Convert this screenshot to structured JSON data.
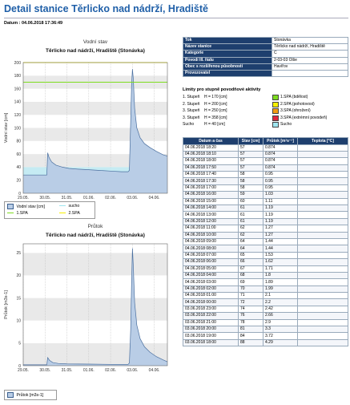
{
  "page": {
    "title": "Detail stanice Těrlicko nad nádrží, Hradiště",
    "datum": "Datum : 04.06.2018 17:36:49"
  },
  "info": [
    {
      "k": "Tok",
      "v": "Stonávka"
    },
    {
      "k": "Název stanice",
      "v": "Těrlicko nad nádrží, Hradiště"
    },
    {
      "k": "Kategorie",
      "v": "C"
    },
    {
      "k": "Povodí III. řádu",
      "v": "2-03-03 Olše"
    },
    {
      "k": "Obec s rozšířenou působností",
      "v": "Havířov"
    },
    {
      "k": "Provozovatel",
      "v": ""
    }
  ],
  "limits": {
    "title": "Limity pro stupně povodňové aktivity",
    "rows": [
      {
        "stupen": "1. Stupeň",
        "h": "H = 170 [cm]",
        "color": "#7ddc1f",
        "label": "1.SPA (bdělost)"
      },
      {
        "stupen": "2. Stupeň",
        "h": "H = 200 [cm]",
        "color": "#f6f000",
        "label": "2.SPA (pohotovost)"
      },
      {
        "stupen": "3. Stupeň",
        "h": "H = 250 [cm]",
        "color": "#f39c12",
        "label": "3.SPA (ohrožení)"
      },
      {
        "stupen": "3. Stupeň",
        "h": "H = 358 [cm]",
        "color": "#e0263d",
        "label": "3.SPA (extrémní povodeň)"
      },
      {
        "stupen": "Sucho",
        "h": "H = 40 [cm]",
        "color": "#9fe6f0",
        "label": "Sucho"
      }
    ]
  },
  "table": {
    "headers": [
      "Datum a čas",
      "Stav [cm]",
      "Průtok [m³s⁻¹]",
      "Teplota [°C]"
    ],
    "rows": [
      [
        "04.06.2018 18:20",
        "57",
        "0.874",
        ""
      ],
      [
        "04.06.2018 18:10",
        "57",
        "0.874",
        ""
      ],
      [
        "04.06.2018 18:00",
        "57",
        "0.874",
        ""
      ],
      [
        "04.06.2018 17:50",
        "57",
        "0.874",
        ""
      ],
      [
        "04.06.2018 17:40",
        "58",
        "0.95",
        ""
      ],
      [
        "04.06.2018 17:30",
        "58",
        "0.95",
        ""
      ],
      [
        "04.06.2018 17:00",
        "58",
        "0.95",
        ""
      ],
      [
        "04.06.2018 16:00",
        "59",
        "1.03",
        ""
      ],
      [
        "04.06.2018 15:00",
        "60",
        "1.11",
        ""
      ],
      [
        "04.06.2018 14:00",
        "61",
        "1.19",
        ""
      ],
      [
        "04.06.2018 13:00",
        "61",
        "1.19",
        ""
      ],
      [
        "04.06.2018 12:00",
        "61",
        "1.19",
        ""
      ],
      [
        "04.06.2018 11:00",
        "62",
        "1.27",
        ""
      ],
      [
        "04.06.2018 10:00",
        "62",
        "1.27",
        ""
      ],
      [
        "04.06.2018 09:00",
        "64",
        "1.44",
        ""
      ],
      [
        "04.06.2018 08:00",
        "64",
        "1.44",
        ""
      ],
      [
        "04.06.2018 07:00",
        "65",
        "1.53",
        ""
      ],
      [
        "04.06.2018 06:00",
        "66",
        "1.62",
        ""
      ],
      [
        "04.06.2018 05:00",
        "67",
        "1.71",
        ""
      ],
      [
        "04.06.2018 04:00",
        "68",
        "1.8",
        ""
      ],
      [
        "04.06.2018 03:00",
        "69",
        "1.89",
        ""
      ],
      [
        "04.06.2018 02:00",
        "70",
        "1.99",
        ""
      ],
      [
        "04.06.2018 01:00",
        "71",
        "2.1",
        ""
      ],
      [
        "04.06.2018 00:00",
        "72",
        "2.2",
        ""
      ],
      [
        "03.06.2018 23:00",
        "74",
        "2.42",
        ""
      ],
      [
        "03.06.2018 22:00",
        "76",
        "2.66",
        ""
      ],
      [
        "03.06.2018 21:00",
        "78",
        "2.9",
        ""
      ],
      [
        "03.06.2018 20:00",
        "81",
        "3.3",
        ""
      ],
      [
        "03.06.2018 19:00",
        "84",
        "3.72",
        ""
      ],
      [
        "03.06.2018 18:00",
        "88",
        "4.29",
        ""
      ]
    ]
  },
  "chart_data": [
    {
      "type": "area",
      "title": "Vodní stav",
      "subtitle": "Těrlicko nad nádrží, Hradiště (Stonávka)",
      "ylabel": "Vodní stav [cm]",
      "xlabel": "",
      "ylim": [
        0,
        200
      ],
      "yticks": [
        "0",
        "20",
        "40",
        "60",
        "80",
        "100",
        "120",
        "140",
        "160",
        "180",
        "200"
      ],
      "xticks": [
        "29.05.",
        "30.05.",
        "31.05.",
        "01.06.",
        "02.06.",
        "03.06.",
        "04.06."
      ],
      "grid": true,
      "series_color": "#b9cde6",
      "thresholds": [
        {
          "name": "1.SPA",
          "value": 170,
          "color": "#7ddc1f"
        },
        {
          "name": "2.SPA",
          "value": 200,
          "color": "#f6f000"
        },
        {
          "name": "sucho",
          "value": 40,
          "color": "#9fe6f0"
        }
      ],
      "series": [
        {
          "name": "Vodní stav [cm]",
          "points": [
            [
              0,
              28
            ],
            [
              1.08,
              28
            ],
            [
              1.12,
              62
            ],
            [
              1.18,
              55
            ],
            [
              1.3,
              48
            ],
            [
              1.5,
              43
            ],
            [
              1.8,
              40
            ],
            [
              2.1,
              38
            ],
            [
              2.5,
              37
            ],
            [
              3,
              36
            ],
            [
              3.5,
              35
            ],
            [
              4,
              34
            ],
            [
              4.5,
              33
            ],
            [
              4.8,
              33
            ],
            [
              4.86,
              35
            ],
            [
              4.92,
              110
            ],
            [
              4.96,
              165
            ],
            [
              5.0,
              190
            ],
            [
              5.04,
              175
            ],
            [
              5.1,
              130
            ],
            [
              5.2,
              100
            ],
            [
              5.35,
              85
            ],
            [
              5.55,
              76
            ],
            [
              5.8,
              70
            ],
            [
              6.1,
              64
            ],
            [
              6.4,
              59
            ],
            [
              6.6,
              57
            ]
          ]
        }
      ],
      "legend": [
        "Vodní stav [cm]",
        "sucho",
        "1.SPA",
        "2.SPA"
      ]
    },
    {
      "type": "area",
      "title": "Průtok",
      "subtitle": "Těrlicko nad nádrží, Hradiště (Stonávka)",
      "ylabel": "Průtok [m3s-1]",
      "xlabel": "",
      "ylim": [
        0,
        27
      ],
      "yticks": [
        "0",
        "5",
        "10",
        "15",
        "20",
        "25"
      ],
      "xticks": [
        "29.05.",
        "30.05.",
        "31.05.",
        "01.06.",
        "02.06.",
        "03.06.",
        "04.06."
      ],
      "grid": true,
      "series_color": "#b9cde6",
      "series": [
        {
          "name": "Průtok [m3s-1]",
          "points": [
            [
              0,
              0.2
            ],
            [
              1.08,
              0.2
            ],
            [
              1.12,
              1.8
            ],
            [
              1.2,
              1.2
            ],
            [
              1.35,
              0.7
            ],
            [
              1.6,
              0.5
            ],
            [
              2,
              0.4
            ],
            [
              3,
              0.35
            ],
            [
              4,
              0.3
            ],
            [
              4.8,
              0.3
            ],
            [
              4.86,
              0.6
            ],
            [
              4.92,
              8
            ],
            [
              4.96,
              18
            ],
            [
              5.0,
              26
            ],
            [
              5.04,
              22
            ],
            [
              5.1,
              14
            ],
            [
              5.2,
              9
            ],
            [
              5.35,
              6
            ],
            [
              5.55,
              4.2
            ],
            [
              5.8,
              3
            ],
            [
              6.1,
              2
            ],
            [
              6.4,
              1.3
            ],
            [
              6.6,
              0.87
            ]
          ]
        }
      ],
      "legend": [
        "Průtok [m3s-1]"
      ]
    }
  ]
}
